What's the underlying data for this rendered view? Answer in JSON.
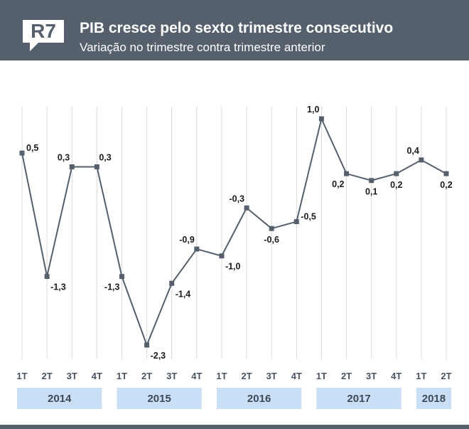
{
  "header": {
    "logo_text": "R7",
    "title": "PIB cresce pelo sexto trimestre consecutivo",
    "subtitle": "Variação no trimestre contra trimestre anterior"
  },
  "colors": {
    "header_bg": "#56606d",
    "line": "#56606d",
    "year_band": "#c9dff5",
    "grid": "#d9d9d9"
  },
  "chart_data": {
    "type": "line",
    "title": "PIB cresce pelo sexto trimestre consecutivo",
    "subtitle": "Variação no trimestre contra trimestre anterior",
    "categories": [
      "1T",
      "2T",
      "3T",
      "4T",
      "1T",
      "2T",
      "3T",
      "4T",
      "1T",
      "2T",
      "3T",
      "4T",
      "1T",
      "2T",
      "3T",
      "4T",
      "1T",
      "2T"
    ],
    "years": [
      {
        "label": "2014",
        "quarters": 4
      },
      {
        "label": "2015",
        "quarters": 4
      },
      {
        "label": "2016",
        "quarters": 4
      },
      {
        "label": "2017",
        "quarters": 4
      },
      {
        "label": "2018",
        "quarters": 2
      }
    ],
    "values": [
      0.5,
      -1.3,
      0.3,
      0.3,
      -1.3,
      -2.3,
      -1.4,
      -0.9,
      -1.0,
      -0.3,
      -0.6,
      -0.5,
      1.0,
      0.2,
      0.1,
      0.2,
      0.4,
      0.2
    ],
    "labels": [
      "0,5",
      "-1,3",
      "0,3",
      "0,3",
      "-1,3",
      "-2,3",
      "-1,4",
      "-0,9",
      "-1,0",
      "-0,3",
      "-0,6",
      "-0,5",
      "1,0",
      "0,2",
      "0,1",
      "0,2",
      "0,4",
      "0,2"
    ],
    "label_pos": [
      "right",
      "below-right",
      "above-left",
      "above-right",
      "below-left",
      "below-right",
      "below-right",
      "above-left",
      "below-right",
      "above-left",
      "below",
      "right",
      "above-left",
      "below-left",
      "below",
      "below",
      "above-left",
      "below"
    ],
    "grid": "vertical",
    "legend": "none"
  }
}
